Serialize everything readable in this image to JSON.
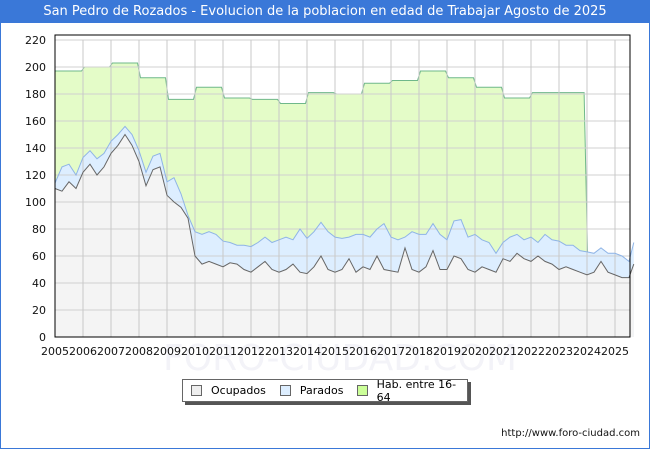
{
  "header": {
    "title": "San Pedro de Rozados - Evolucion de la poblacion en edad de Trabajar Agosto de 2025"
  },
  "footer": {
    "url": "http://www.foro-ciudad.com"
  },
  "watermark": "FORO-CIUDAD.COM",
  "legend": {
    "items": [
      {
        "label": "Ocupados",
        "color": "#f4f4f4",
        "border": "#666666"
      },
      {
        "label": "Parados",
        "color": "#ddeeff",
        "border": "#666666"
      },
      {
        "label": "Hab. entre 16-64",
        "color": "#ccff99",
        "border": "#666666"
      }
    ]
  },
  "chart_data": {
    "type": "area",
    "title": "San Pedro de Rozados - Evolucion de la poblacion en edad de Trabajar Agosto de 2025",
    "xlabel": "",
    "ylabel": "",
    "ylim": [
      0,
      220
    ],
    "yticks": [
      0,
      20,
      40,
      60,
      80,
      100,
      120,
      140,
      160,
      180,
      200,
      220
    ],
    "xlim": [
      2005,
      2025.67
    ],
    "xticks": [
      "2005",
      "2006",
      "2007",
      "2008",
      "2009",
      "2010",
      "2011",
      "2012",
      "2013",
      "2014",
      "2015",
      "2016",
      "2017",
      "2018",
      "2019",
      "2020",
      "2021",
      "2022",
      "2023",
      "2024",
      "2025"
    ],
    "grid": true,
    "legend_position": "bottom",
    "series": [
      {
        "name": "Hab. entre 16-64",
        "style": "step",
        "color": "#e4fcc8",
        "line": "#6fb88a",
        "x": [
          2005,
          2006,
          2007,
          2008,
          2009,
          2010,
          2011,
          2012,
          2013,
          2014,
          2015,
          2016,
          2017,
          2018,
          2019,
          2020,
          2021,
          2022,
          2023,
          2024
        ],
        "values": [
          197,
          200,
          203,
          192,
          176,
          185,
          177,
          176,
          173,
          181,
          180,
          188,
          190,
          197,
          192,
          185,
          177,
          181,
          181,
          null
        ]
      },
      {
        "name": "Parados",
        "note": "upper line = Ocupados + Parados",
        "color": "#ddeeff",
        "line": "#8fb4e6",
        "x": [
          2005,
          2005.25,
          2005.5,
          2005.75,
          2006,
          2006.25,
          2006.5,
          2006.75,
          2007,
          2007.25,
          2007.5,
          2007.75,
          2008,
          2008.25,
          2008.5,
          2008.75,
          2009,
          2009.25,
          2009.5,
          2009.75,
          2010,
          2010.25,
          2010.5,
          2010.75,
          2011,
          2011.25,
          2011.5,
          2011.75,
          2012,
          2012.25,
          2012.5,
          2012.75,
          2013,
          2013.25,
          2013.5,
          2013.75,
          2014,
          2014.25,
          2014.5,
          2014.75,
          2015,
          2015.25,
          2015.5,
          2015.75,
          2016,
          2016.25,
          2016.5,
          2016.75,
          2017,
          2017.25,
          2017.5,
          2017.75,
          2018,
          2018.25,
          2018.5,
          2018.75,
          2019,
          2019.25,
          2019.5,
          2019.75,
          2020,
          2020.25,
          2020.5,
          2020.75,
          2021,
          2021.25,
          2021.5,
          2021.75,
          2022,
          2022.25,
          2022.5,
          2022.75,
          2023,
          2023.25,
          2023.5,
          2023.75,
          2024,
          2024.25,
          2024.5,
          2024.75,
          2025,
          2025.25,
          2025.5,
          2025.67
        ],
        "values": [
          114,
          126,
          128,
          120,
          133,
          138,
          132,
          136,
          145,
          150,
          156,
          150,
          138,
          122,
          134,
          136,
          115,
          118,
          106,
          90,
          78,
          76,
          78,
          76,
          71,
          70,
          68,
          68,
          67,
          70,
          74,
          70,
          72,
          74,
          72,
          80,
          73,
          78,
          85,
          78,
          74,
          73,
          74,
          76,
          76,
          74,
          80,
          84,
          74,
          72,
          74,
          78,
          76,
          76,
          84,
          76,
          72,
          86,
          87,
          74,
          76,
          72,
          70,
          62,
          70,
          74,
          76,
          72,
          74,
          70,
          76,
          72,
          71,
          68,
          68,
          64,
          63,
          62,
          66,
          62,
          62,
          60,
          56,
          70
        ]
      },
      {
        "name": "Ocupados",
        "color": "#f4f4f4",
        "line": "#666666",
        "x": [
          2005,
          2005.25,
          2005.5,
          2005.75,
          2006,
          2006.25,
          2006.5,
          2006.75,
          2007,
          2007.25,
          2007.5,
          2007.75,
          2008,
          2008.25,
          2008.5,
          2008.75,
          2009,
          2009.25,
          2009.5,
          2009.75,
          2010,
          2010.25,
          2010.5,
          2010.75,
          2011,
          2011.25,
          2011.5,
          2011.75,
          2012,
          2012.25,
          2012.5,
          2012.75,
          2013,
          2013.25,
          2013.5,
          2013.75,
          2014,
          2014.25,
          2014.5,
          2014.75,
          2015,
          2015.25,
          2015.5,
          2015.75,
          2016,
          2016.25,
          2016.5,
          2016.75,
          2017,
          2017.25,
          2017.5,
          2017.75,
          2018,
          2018.25,
          2018.5,
          2018.75,
          2019,
          2019.25,
          2019.5,
          2019.75,
          2020,
          2020.25,
          2020.5,
          2020.75,
          2021,
          2021.25,
          2021.5,
          2021.75,
          2022,
          2022.25,
          2022.5,
          2022.75,
          2023,
          2023.25,
          2023.5,
          2023.75,
          2024,
          2024.25,
          2024.5,
          2024.75,
          2025,
          2025.25,
          2025.5,
          2025.67
        ],
        "values": [
          110,
          108,
          115,
          110,
          122,
          128,
          120,
          126,
          136,
          142,
          150,
          142,
          130,
          112,
          124,
          126,
          105,
          100,
          96,
          88,
          60,
          54,
          56,
          54,
          52,
          55,
          54,
          50,
          48,
          52,
          56,
          50,
          48,
          50,
          54,
          48,
          47,
          52,
          60,
          50,
          48,
          50,
          58,
          48,
          52,
          50,
          60,
          50,
          49,
          48,
          66,
          50,
          48,
          52,
          64,
          50,
          50,
          60,
          58,
          50,
          48,
          52,
          50,
          48,
          58,
          56,
          62,
          58,
          56,
          60,
          56,
          54,
          50,
          52,
          50,
          48,
          46,
          48,
          56,
          48,
          46,
          44,
          44,
          54
        ]
      }
    ]
  }
}
